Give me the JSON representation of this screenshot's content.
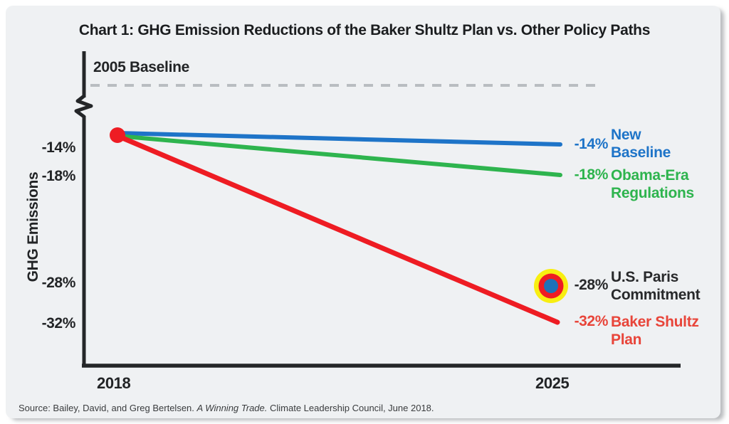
{
  "chart_data": {
    "type": "line",
    "title": "Chart 1: GHG Emission Reductions of the Baker Shultz Plan vs. Other Policy Paths",
    "ylabel": "GHG Emissions",
    "x": [
      2018,
      2025
    ],
    "x_axis_labels": [
      "2018",
      "2025"
    ],
    "y_ticks": [
      "-14%",
      "-18%",
      "-28%",
      "-32%"
    ],
    "baseline": {
      "label": "2005 Baseline",
      "value": 0,
      "style": "dashed"
    },
    "start_point": {
      "x": 2018,
      "y_approx": -13
    },
    "series": [
      {
        "name": "New Baseline",
        "name_lines": [
          "New",
          "Baseline"
        ],
        "color": "#1e74c8",
        "values": [
          -13,
          -14
        ],
        "end_label": "-14%",
        "style": "line"
      },
      {
        "name": "Obama-Era Regulations",
        "name_lines": [
          "Obama-Era",
          "Regulations"
        ],
        "color": "#2eb44e",
        "values": [
          -13,
          -18
        ],
        "end_label": "-18%",
        "style": "line"
      },
      {
        "name": "Baker Shultz Plan",
        "name_lines": [
          "Baker Shultz",
          "Plan"
        ],
        "color": "#ee1c23",
        "label_color": "#e8453a",
        "values": [
          -13,
          -32
        ],
        "end_label": "-32%",
        "style": "line"
      },
      {
        "name": "U.S. Paris Commitment",
        "name_lines": [
          "U.S. Paris",
          "Commitment"
        ],
        "color": "#28292b",
        "values": [
          null,
          -28
        ],
        "end_label": "-28%",
        "style": "point",
        "marker_colors": [
          "#f8ee11",
          "#ee1c23",
          "#1e72b8"
        ]
      }
    ],
    "legend_position": "right",
    "grid": false,
    "axis_color": "#242628",
    "baseline_dash_color": "#b9bdc1",
    "source": {
      "prefix": "Source: Bailey, David, and Greg Bertelsen. ",
      "italic": "A Winning Trade.",
      "suffix": " Climate Leadership Council, June 2018."
    }
  }
}
